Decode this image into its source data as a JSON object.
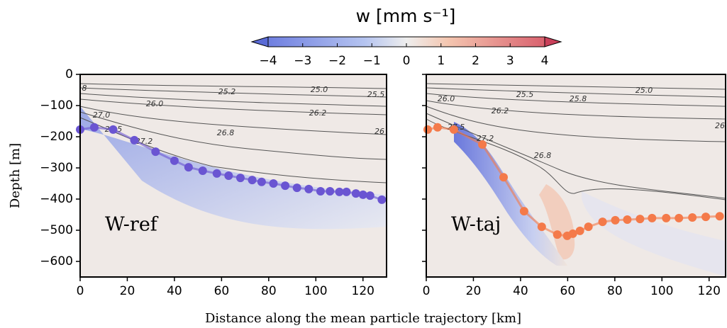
{
  "colorbar": {
    "title": "w [mm s⁻¹]",
    "lim": [
      -4,
      4
    ],
    "ticks": [
      {
        "value": -4,
        "label": "−4"
      },
      {
        "value": -3,
        "label": "−3"
      },
      {
        "value": -2,
        "label": "−2"
      },
      {
        "value": -1,
        "label": "−1"
      },
      0,
      1,
      2,
      3,
      4
    ]
  },
  "xlabel": "Distance along the mean particle trajectory [km]",
  "chart_data": [
    {
      "type": "scatter",
      "label": "W-ref",
      "ylabel": "Depth [m]",
      "color": "#6a55d2",
      "x": [
        0,
        6,
        14,
        23,
        32,
        40,
        46,
        52,
        58,
        63,
        68,
        73,
        77,
        82,
        87,
        92,
        97,
        102,
        106,
        110,
        113,
        117,
        120,
        123,
        128
      ],
      "values": [
        -177,
        -170,
        -177,
        -211,
        -248,
        -277,
        -298,
        -309,
        -318,
        -325,
        -332,
        -339,
        -345,
        -350,
        -357,
        -364,
        -368,
        -375,
        -375,
        -377,
        -377,
        -382,
        -386,
        -389,
        -402
      ],
      "xlim": [
        0,
        130
      ],
      "xticks": [
        0,
        20,
        40,
        60,
        80,
        100,
        120
      ],
      "ylim": [
        -650,
        0
      ],
      "yticks": [
        {
          "value": -600,
          "label": "−600"
        },
        {
          "value": -500,
          "label": "−500"
        },
        {
          "value": -400,
          "label": "−400"
        },
        {
          "value": -300,
          "label": "−300"
        },
        {
          "value": -200,
          "label": "−200"
        },
        {
          "value": -100,
          "label": "−100"
        },
        0
      ],
      "annotations": [
        "8",
        "25.2",
        "25.0",
        "25.5",
        "26.0",
        "26.2",
        "27.0",
        "27.5",
        "27.2",
        "26.8",
        "26"
      ]
    },
    {
      "type": "scatter",
      "label": "W-taj",
      "color": "#f47a4a",
      "x": [
        0.6,
        4.8,
        11.7,
        23.8,
        32.8,
        41.5,
        49,
        55.6,
        59.8,
        62.2,
        65.2,
        68.8,
        74.8,
        80.2,
        85.3,
        90.7,
        95.8,
        101.8,
        107.2,
        112.9,
        118.6,
        124.5
      ],
      "values": [
        -177,
        -170,
        -177,
        -225,
        -330,
        -439,
        -489,
        -514,
        -518,
        -511,
        -502,
        -489,
        -473,
        -468,
        -466,
        -464,
        -461,
        -461,
        -461,
        -459,
        -457,
        -455
      ],
      "xlim": [
        0,
        127
      ],
      "xticks": [
        0,
        20,
        40,
        60,
        80,
        100,
        120
      ],
      "ylim": [
        -650,
        0
      ],
      "yticks": [
        -600,
        -500,
        -400,
        -300,
        -200,
        -100,
        0
      ],
      "annotations": [
        "26.0",
        "25.5",
        "25.0",
        "25.8",
        "26.2",
        "27.5",
        "27.2",
        "26.8",
        "26"
      ]
    }
  ]
}
